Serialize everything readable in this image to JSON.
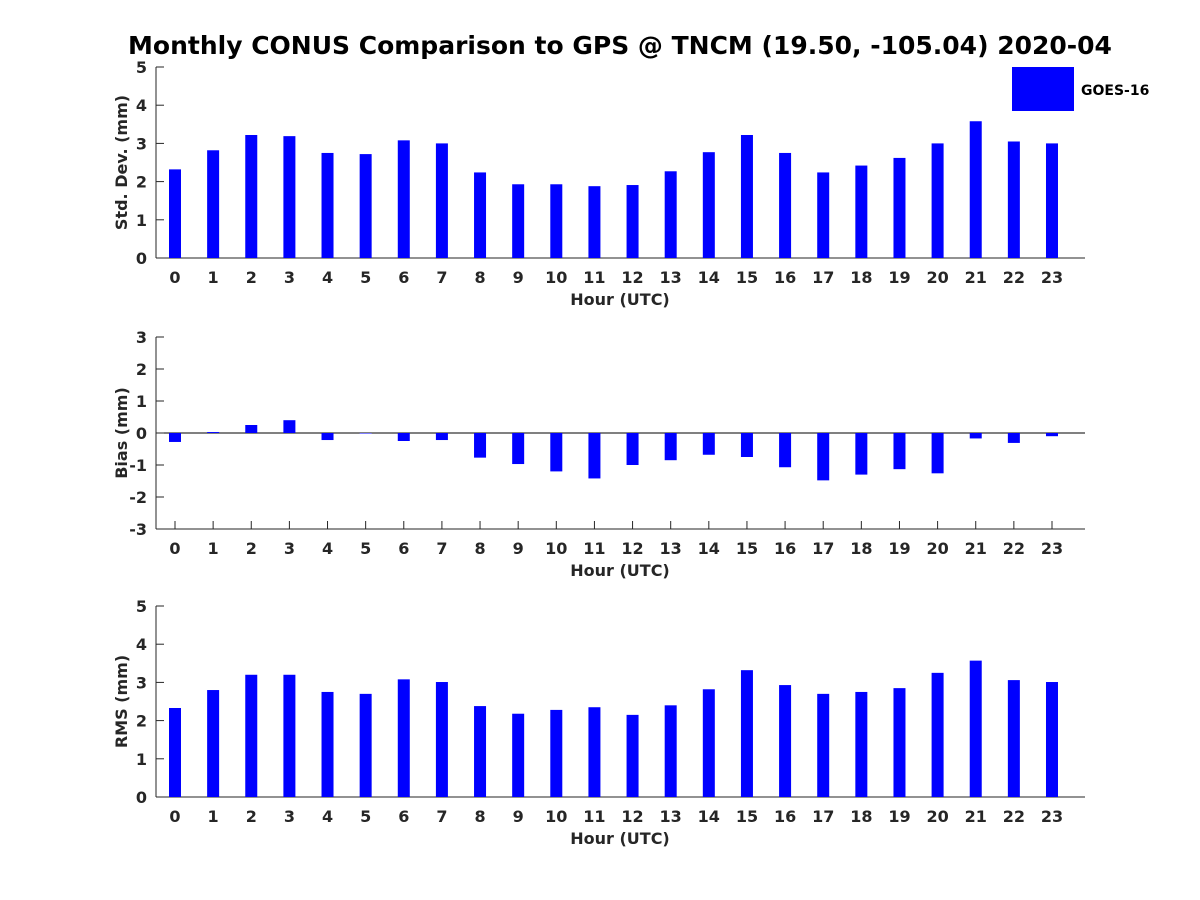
{
  "chart_data": {
    "type": "bar",
    "title": "Monthly CONUS Comparison to GPS @ TNCM (19.50, -105.04) 2020-04",
    "categories": [
      "0",
      "1",
      "2",
      "3",
      "4",
      "5",
      "6",
      "7",
      "8",
      "9",
      "10",
      "11",
      "12",
      "13",
      "14",
      "15",
      "16",
      "17",
      "18",
      "19",
      "20",
      "21",
      "22",
      "23"
    ],
    "legend": {
      "entries": [
        "GOES-16"
      ],
      "placement": "top-right"
    },
    "series_color": "#0000ff",
    "panels": [
      {
        "name": "std-dev",
        "xlabel": "Hour (UTC)",
        "ylabel": "Std. Dev. (mm)",
        "ylim": [
          0,
          5
        ],
        "yticks": [
          "0",
          "1",
          "2",
          "3",
          "4",
          "5"
        ],
        "series": [
          {
            "name": "GOES-16",
            "values": [
              2.32,
              2.82,
              3.22,
              3.19,
              2.75,
              2.72,
              3.08,
              3.0,
              2.24,
              1.93,
              1.93,
              1.88,
              1.91,
              2.27,
              2.77,
              3.22,
              2.75,
              2.24,
              2.42,
              2.62,
              3.0,
              3.58,
              3.05,
              3.0
            ]
          }
        ]
      },
      {
        "name": "bias",
        "xlabel": "Hour (UTC)",
        "ylabel": "Bias (mm)",
        "ylim": [
          -3,
          3
        ],
        "yticks": [
          "-3",
          "-2",
          "-1",
          "0",
          "1",
          "2",
          "3"
        ],
        "series": [
          {
            "name": "GOES-16",
            "values": [
              -0.28,
              0.03,
              0.25,
              0.4,
              -0.22,
              -0.01,
              -0.25,
              -0.22,
              -0.77,
              -0.97,
              -1.2,
              -1.42,
              -1.0,
              -0.85,
              -0.68,
              -0.75,
              -1.07,
              -1.48,
              -1.3,
              -1.13,
              -1.26,
              -0.17,
              -0.31,
              -0.1
            ]
          }
        ]
      },
      {
        "name": "rms",
        "xlabel": "Hour (UTC)",
        "ylabel": "RMS (mm)",
        "ylim": [
          0,
          5
        ],
        "yticks": [
          "0",
          "1",
          "2",
          "3",
          "4",
          "5"
        ],
        "series": [
          {
            "name": "GOES-16",
            "values": [
              2.33,
              2.8,
              3.2,
              3.2,
              2.75,
              2.7,
              3.08,
              3.01,
              2.38,
              2.18,
              2.28,
              2.35,
              2.15,
              2.4,
              2.82,
              3.32,
              2.93,
              2.7,
              2.75,
              2.85,
              3.25,
              3.57,
              3.06,
              3.01
            ]
          }
        ]
      }
    ]
  }
}
